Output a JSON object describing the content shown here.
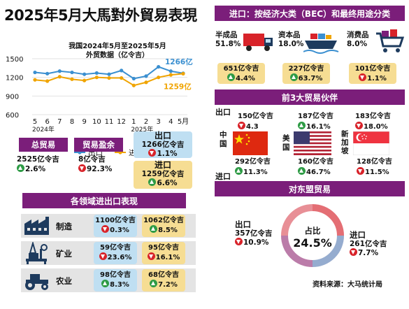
{
  "title": "2025年5月大馬對外貿易表現",
  "chart_data": {
    "type": "line",
    "title": "我国2024年5月至2025年5月外贸数据（亿令吉）",
    "x": [
      "5",
      "6",
      "7",
      "8",
      "9",
      "10",
      "11",
      "12",
      "1",
      "2",
      "3",
      "4",
      "5月"
    ],
    "x_year_labels": [
      "2024年",
      "2025年"
    ],
    "ylim": [
      600,
      1500
    ],
    "yticks": [
      600,
      900,
      1200,
      1500
    ],
    "series": [
      {
        "name": "出口",
        "color": "#3a8fd0",
        "values": [
          1280,
          1260,
          1300,
          1280,
          1250,
          1270,
          1250,
          1310,
          1180,
          1220,
          1370,
          1300,
          1266
        ]
      },
      {
        "name": "进口",
        "color": "#f0a400",
        "values": [
          1160,
          1140,
          1210,
          1170,
          1150,
          1200,
          1190,
          1190,
          1070,
          1120,
          1200,
          1240,
          1259
        ]
      }
    ],
    "annotations": [
      "1266亿",
      "1259亿"
    ]
  },
  "summary": {
    "total_label": "总贸易",
    "total_value": "2525亿令吉",
    "total_change": "2.6%",
    "surplus_label": "贸易盈余",
    "surplus_value": "8亿令吉",
    "surplus_change": "92.3%",
    "export_label": "出口",
    "export_value": "1266亿令吉",
    "export_change": "1.1%",
    "import_label": "进口",
    "import_value": "1259亿令吉",
    "import_change": "6.6%"
  },
  "sectors": {
    "heading": "各领域进出口表现",
    "rows": [
      {
        "name": "制造",
        "icon": "factory-icon",
        "export_value": "1100亿令吉",
        "export_change": "0.3%",
        "export_dir": "down",
        "import_value": "1062亿令吉",
        "import_change": "8.5%",
        "import_dir": "up"
      },
      {
        "name": "矿业",
        "icon": "oil-rig-icon",
        "export_value": "59亿令吉",
        "export_change": "23.6%",
        "export_dir": "down",
        "import_value": "95亿令吉",
        "import_change": "16.1%",
        "import_dir": "down"
      },
      {
        "name": "农业",
        "icon": "tractor-icon",
        "export_value": "98亿令吉",
        "export_change": "8.3%",
        "export_dir": "up",
        "import_value": "68亿令吉",
        "import_change": "7.2%",
        "import_dir": "up"
      }
    ]
  },
  "imports_bec": {
    "heading": "进口：按经济大类（BEC）和最终用途分类",
    "items": [
      {
        "name": "半成品",
        "share": "51.8%",
        "icon": "truck-icon",
        "value": "651亿令吉",
        "change": "4.4%",
        "dir": "up"
      },
      {
        "name": "资本品",
        "share": "18.0%",
        "icon": "cargo-ship-icon",
        "value": "227亿令吉",
        "change": "63.7%",
        "dir": "up"
      },
      {
        "name": "消费品",
        "share": "8.0%",
        "icon": "shopping-cart-icon",
        "value": "101亿令吉",
        "change": "1.1%",
        "dir": "down"
      }
    ]
  },
  "partners": {
    "heading": "前3大贸易伙伴",
    "export_label": "出口",
    "import_label": "进口",
    "items": [
      {
        "country": "中国",
        "export_value": "150亿令吉",
        "export_change": "4.3",
        "export_dir": "down",
        "import_value": "292亿令吉",
        "import_change": "11.3%",
        "import_dir": "up"
      },
      {
        "country": "美国",
        "export_value": "187亿令吉",
        "export_change": "16.1%",
        "export_dir": "up",
        "import_value": "160亿令吉",
        "import_change": "46.7%",
        "import_dir": "up"
      },
      {
        "country": "新加坡",
        "export_value": "183亿令吉",
        "export_change": "18.0%",
        "export_dir": "down",
        "import_value": "128亿令吉",
        "import_change": "11.5%",
        "import_dir": "down"
      }
    ]
  },
  "asean": {
    "heading": "对东盟贸易",
    "export_label": "出口",
    "export_value": "357亿令吉",
    "export_change": "10.9%",
    "share_label": "占比",
    "share_value": "24.5%",
    "import_label": "进口",
    "import_value": "261亿令吉",
    "import_change": "7.7%"
  },
  "source": "资料来源：大马统计局",
  "colors": {
    "purple": "#7b1e7a",
    "export": "#3a8fd0",
    "import": "#f0a400",
    "up": "#2e9b45",
    "down": "#d8232a"
  }
}
